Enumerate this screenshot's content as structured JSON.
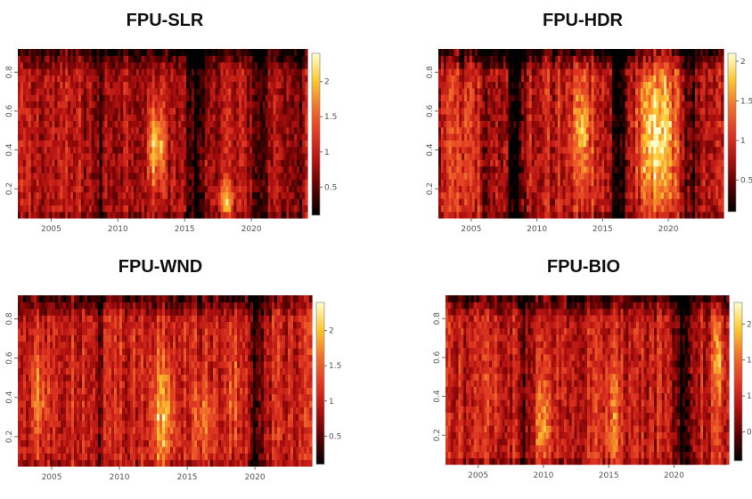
{
  "chart_data": [
    {
      "type": "heatmap",
      "title": "FPU-SLR",
      "xlim": [
        2002.5,
        2024.2
      ],
      "ylim": [
        0.05,
        0.92
      ],
      "x_ticks": [
        "2005",
        "2010",
        "2015",
        "2020"
      ],
      "y_ticks": [
        "0.2",
        "0.4",
        "0.6",
        "0.8"
      ],
      "colorbar_range": [
        0.1,
        2.4
      ],
      "colorbar_ticks": [
        "0.5",
        "1",
        "1.5",
        "2"
      ],
      "colorscale": [
        "#000000",
        "#5a0000",
        "#b01010",
        "#e03822",
        "#f0722a",
        "#ffc830",
        "#ffffd0"
      ],
      "base_level": 0.9,
      "hotspots": [
        {
          "x": 2012.9,
          "y": 0.42,
          "sx": 0.45,
          "sy": 0.14,
          "amp": 1.2
        },
        {
          "x": 2018.1,
          "y": 0.15,
          "sx": 0.4,
          "sy": 0.06,
          "amp": 1.0
        },
        {
          "x": 2016.4,
          "y": 0.32,
          "sx": 0.25,
          "sy": 0.12,
          "amp": 0.4
        }
      ],
      "dark_bands": [
        {
          "x": 2016.0,
          "width": 0.6,
          "depth": 0.85
        },
        {
          "x": 2020.5,
          "width": 0.4,
          "depth": 0.7
        },
        {
          "x": 2008.6,
          "width": 0.3,
          "depth": 0.5
        },
        {
          "x": 2023.4,
          "width": 0.3,
          "depth": 0.5
        }
      ]
    },
    {
      "type": "heatmap",
      "title": "FPU-HDR",
      "xlim": [
        2002.5,
        2024.2
      ],
      "ylim": [
        0.05,
        0.92
      ],
      "x_ticks": [
        "2005",
        "2010",
        "2015",
        "2020"
      ],
      "y_ticks": [
        "0.2",
        "0.4",
        "0.6",
        "0.8"
      ],
      "colorbar_range": [
        0.1,
        2.1
      ],
      "colorbar_ticks": [
        "0.5",
        "1",
        "1.5",
        "2"
      ],
      "colorscale": [
        "#000000",
        "#5a0000",
        "#b01010",
        "#e03822",
        "#f0722a",
        "#ffc830",
        "#ffffd0"
      ],
      "base_level": 0.9,
      "hotspots": [
        {
          "x": 2019.1,
          "y": 0.48,
          "sx": 0.9,
          "sy": 0.25,
          "amp": 1.2
        },
        {
          "x": 2013.4,
          "y": 0.5,
          "sx": 0.6,
          "sy": 0.22,
          "amp": 0.75
        },
        {
          "x": 2004.2,
          "y": 0.35,
          "sx": 0.5,
          "sy": 0.2,
          "amp": 0.25
        }
      ],
      "dark_bands": [
        {
          "x": 2008.4,
          "width": 0.5,
          "depth": 0.9
        },
        {
          "x": 2016.3,
          "width": 0.5,
          "depth": 0.85
        },
        {
          "x": 2021.7,
          "width": 0.4,
          "depth": 0.6
        },
        {
          "x": 2006.2,
          "width": 0.3,
          "depth": 0.5
        }
      ]
    },
    {
      "type": "heatmap",
      "title": "FPU-WND",
      "xlim": [
        2002.5,
        2024.2
      ],
      "ylim": [
        0.05,
        0.92
      ],
      "x_ticks": [
        "2005",
        "2010",
        "2015",
        "2020"
      ],
      "y_ticks": [
        "0.2",
        "0.4",
        "0.6",
        "0.8"
      ],
      "colorbar_range": [
        0.1,
        2.4
      ],
      "colorbar_ticks": [
        "0.5",
        "1",
        "1.5",
        "2"
      ],
      "colorscale": [
        "#000000",
        "#5a0000",
        "#b01010",
        "#e03822",
        "#f0722a",
        "#ffc830",
        "#ffffd0"
      ],
      "base_level": 1.05,
      "hotspots": [
        {
          "x": 2013.2,
          "y": 0.32,
          "sx": 0.6,
          "sy": 0.2,
          "amp": 1.0
        },
        {
          "x": 2004.1,
          "y": 0.4,
          "sx": 0.5,
          "sy": 0.15,
          "amp": 0.6
        },
        {
          "x": 2016.2,
          "y": 0.28,
          "sx": 0.5,
          "sy": 0.15,
          "amp": 0.55
        },
        {
          "x": 2018.5,
          "y": 0.45,
          "sx": 0.4,
          "sy": 0.2,
          "amp": 0.45
        }
      ],
      "dark_bands": [
        {
          "x": 2020.0,
          "width": 0.4,
          "depth": 0.7
        },
        {
          "x": 2008.5,
          "width": 0.3,
          "depth": 0.4
        }
      ]
    },
    {
      "type": "heatmap",
      "title": "FPU-BIO",
      "xlim": [
        2002.5,
        2024.2
      ],
      "ylim": [
        0.05,
        0.92
      ],
      "x_ticks": [
        "2005",
        "2010",
        "2015",
        "2020"
      ],
      "y_ticks": [
        "0.2",
        "0.4",
        "0.6",
        "0.8"
      ],
      "colorbar_range": [
        0.1,
        2.3
      ],
      "colorbar_ticks": [
        "0.5",
        "1",
        "1.5",
        "2"
      ],
      "colorscale": [
        "#000000",
        "#5a0000",
        "#b01010",
        "#e03822",
        "#f0722a",
        "#ffc830",
        "#ffffd0"
      ],
      "base_level": 1.0,
      "hotspots": [
        {
          "x": 2010.0,
          "y": 0.28,
          "sx": 0.4,
          "sy": 0.15,
          "amp": 0.7
        },
        {
          "x": 2015.2,
          "y": 0.3,
          "sx": 0.5,
          "sy": 0.2,
          "amp": 0.55
        },
        {
          "x": 2023.4,
          "y": 0.58,
          "sx": 0.3,
          "sy": 0.15,
          "amp": 0.6
        },
        {
          "x": 2006.0,
          "y": 0.45,
          "sx": 0.5,
          "sy": 0.2,
          "amp": 0.3
        }
      ],
      "dark_bands": [
        {
          "x": 2020.7,
          "width": 0.45,
          "depth": 0.95
        },
        {
          "x": 2008.4,
          "width": 0.35,
          "depth": 0.55
        }
      ]
    }
  ]
}
